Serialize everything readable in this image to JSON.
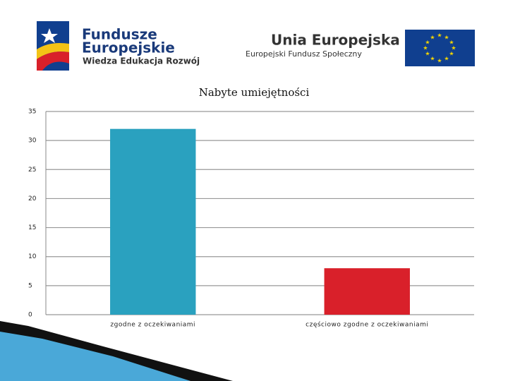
{
  "logos": {
    "fe_line1": "Fundusze",
    "fe_line2": "Europejskie",
    "fe_program": "Wiedza Edukacja Rozwój",
    "ue_title": "Unia Europejska",
    "ue_fund": "Europejski Fundusz Społeczny"
  },
  "chart_data": {
    "type": "bar",
    "title": "Nabyte umiejętności",
    "categories": [
      "zgodne z oczekiwaniami",
      "częściowo zgodne z oczekiwaniami"
    ],
    "values": [
      32,
      8
    ],
    "colors": [
      "#2aa1bf",
      "#d9202a"
    ],
    "ylim": [
      0,
      35
    ],
    "yticks": [
      0,
      5,
      10,
      15,
      20,
      25,
      30,
      35
    ],
    "grid": true
  }
}
